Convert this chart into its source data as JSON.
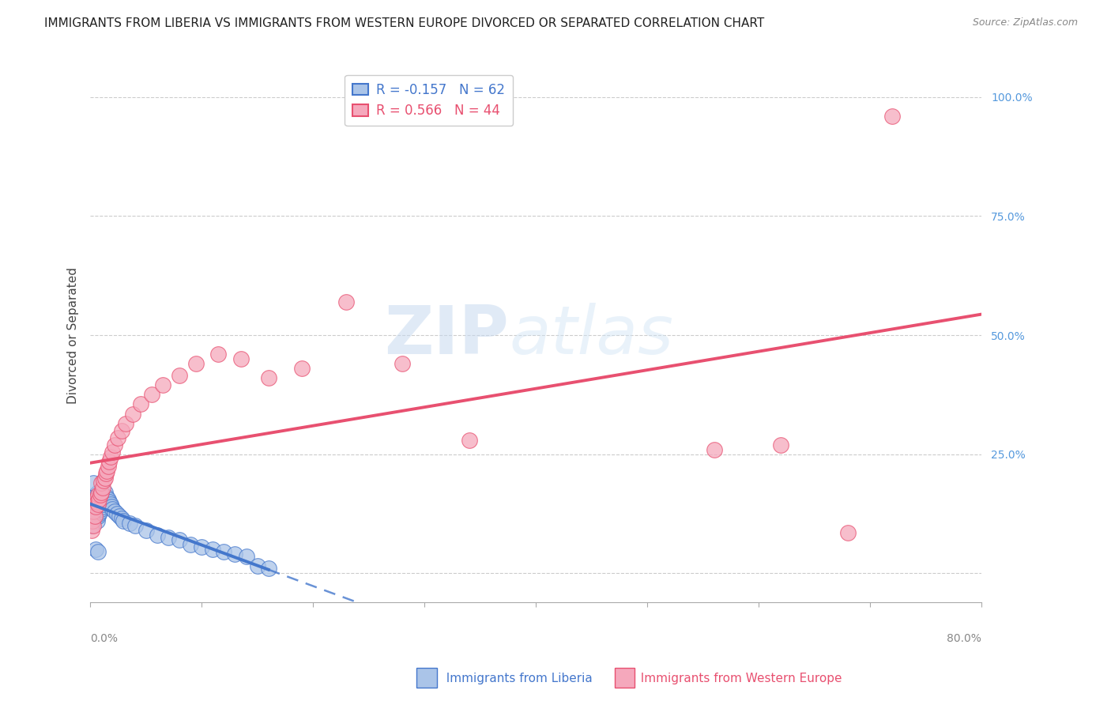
{
  "title": "IMMIGRANTS FROM LIBERIA VS IMMIGRANTS FROM WESTERN EUROPE DIVORCED OR SEPARATED CORRELATION CHART",
  "source": "Source: ZipAtlas.com",
  "ylabel": "Divorced or Separated",
  "ytick_labels": [
    "",
    "25.0%",
    "50.0%",
    "75.0%",
    "100.0%"
  ],
  "ytick_positions": [
    0.0,
    0.25,
    0.5,
    0.75,
    1.0
  ],
  "xlim": [
    0.0,
    0.8
  ],
  "ylim": [
    -0.06,
    1.06
  ],
  "legend_liberia_R": "-0.157",
  "legend_liberia_N": "62",
  "legend_weurope_R": "0.566",
  "legend_weurope_N": "44",
  "color_liberia": "#aac4e8",
  "color_weurope": "#f5a8bc",
  "color_liberia_line": "#4477cc",
  "color_weurope_line": "#e85070",
  "background_color": "#ffffff",
  "grid_color": "#cccccc",
  "liberia_x": [
    0.001,
    0.002,
    0.002,
    0.003,
    0.003,
    0.003,
    0.004,
    0.004,
    0.004,
    0.005,
    0.005,
    0.005,
    0.006,
    0.006,
    0.006,
    0.007,
    0.007,
    0.007,
    0.007,
    0.008,
    0.008,
    0.008,
    0.009,
    0.009,
    0.009,
    0.01,
    0.01,
    0.011,
    0.011,
    0.012,
    0.012,
    0.013,
    0.013,
    0.014,
    0.015,
    0.016,
    0.017,
    0.018,
    0.019,
    0.02,
    0.022,
    0.024,
    0.026,
    0.028,
    0.03,
    0.035,
    0.04,
    0.05,
    0.06,
    0.07,
    0.08,
    0.09,
    0.1,
    0.11,
    0.12,
    0.13,
    0.14,
    0.15,
    0.16,
    0.003,
    0.005,
    0.007
  ],
  "liberia_y": [
    0.1,
    0.13,
    0.155,
    0.12,
    0.14,
    0.16,
    0.115,
    0.135,
    0.15,
    0.125,
    0.145,
    0.165,
    0.11,
    0.13,
    0.15,
    0.12,
    0.14,
    0.155,
    0.17,
    0.125,
    0.145,
    0.16,
    0.13,
    0.15,
    0.165,
    0.135,
    0.155,
    0.14,
    0.16,
    0.145,
    0.165,
    0.15,
    0.17,
    0.155,
    0.16,
    0.155,
    0.15,
    0.145,
    0.14,
    0.135,
    0.13,
    0.125,
    0.12,
    0.115,
    0.11,
    0.105,
    0.1,
    0.09,
    0.08,
    0.075,
    0.07,
    0.06,
    0.055,
    0.05,
    0.045,
    0.04,
    0.035,
    0.015,
    0.01,
    0.19,
    0.05,
    0.045
  ],
  "weurope_x": [
    0.001,
    0.002,
    0.003,
    0.003,
    0.004,
    0.005,
    0.005,
    0.006,
    0.007,
    0.007,
    0.008,
    0.009,
    0.01,
    0.01,
    0.011,
    0.012,
    0.013,
    0.014,
    0.015,
    0.016,
    0.017,
    0.018,
    0.02,
    0.022,
    0.025,
    0.028,
    0.032,
    0.038,
    0.045,
    0.055,
    0.065,
    0.08,
    0.095,
    0.115,
    0.135,
    0.16,
    0.19,
    0.23,
    0.28,
    0.34,
    0.56,
    0.62,
    0.68,
    0.72
  ],
  "weurope_y": [
    0.09,
    0.11,
    0.1,
    0.13,
    0.12,
    0.14,
    0.155,
    0.15,
    0.145,
    0.165,
    0.155,
    0.165,
    0.17,
    0.19,
    0.18,
    0.195,
    0.2,
    0.21,
    0.215,
    0.225,
    0.235,
    0.245,
    0.255,
    0.27,
    0.285,
    0.3,
    0.315,
    0.335,
    0.355,
    0.375,
    0.395,
    0.415,
    0.44,
    0.46,
    0.45,
    0.41,
    0.43,
    0.57,
    0.44,
    0.28,
    0.26,
    0.27,
    0.085,
    0.96
  ],
  "watermark_zip": "ZIP",
  "watermark_atlas": "atlas",
  "title_fontsize": 11,
  "axis_label_fontsize": 11,
  "tick_fontsize": 10,
  "legend_fontsize": 12
}
